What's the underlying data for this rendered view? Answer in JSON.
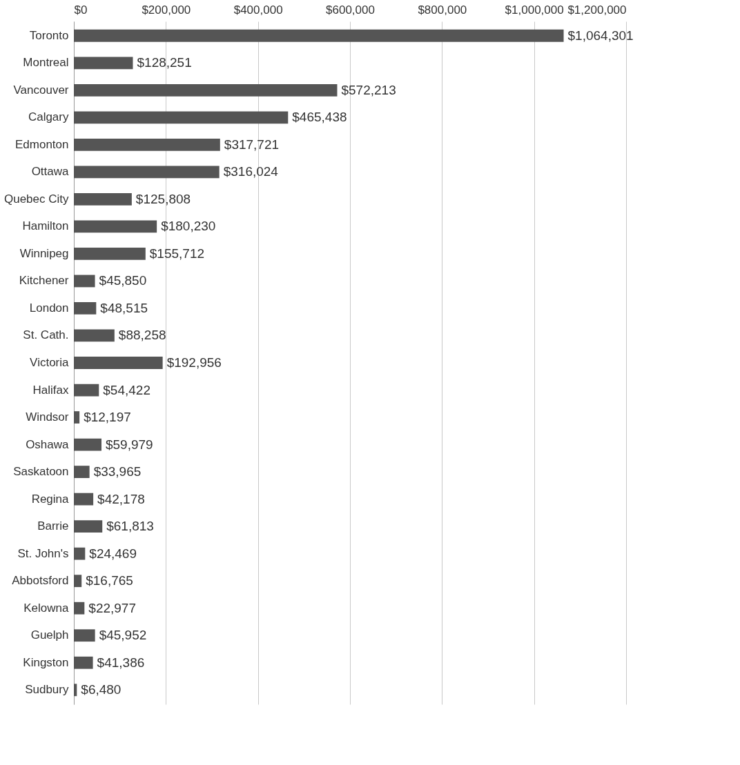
{
  "chart_data": {
    "type": "bar",
    "orientation": "horizontal",
    "grid": "x",
    "categories": [
      "Toronto",
      "Montreal",
      "Vancouver",
      "Calgary",
      "Edmonton",
      "Ottawa",
      "Quebec City",
      "Hamilton",
      "Winnipeg",
      "Kitchener",
      "London",
      "St. Cath.",
      "Victoria",
      "Halifax",
      "Windsor",
      "Oshawa",
      "Saskatoon",
      "Regina",
      "Barrie",
      "St. John's",
      "Abbotsford",
      "Kelowna",
      "Guelph",
      "Kingston",
      "Sudbury"
    ],
    "values": [
      1064301,
      128251,
      572213,
      465438,
      317721,
      316024,
      125808,
      180230,
      155712,
      45850,
      48515,
      88258,
      192956,
      54422,
      12197,
      59979,
      33965,
      42178,
      61813,
      24469,
      16765,
      22977,
      45952,
      41386,
      6480
    ],
    "value_labels": [
      "$1,064,301",
      "$128,251",
      "$572,213",
      "$465,438",
      "$317,721",
      "$316,024",
      "$125,808",
      "$180,230",
      "$155,712",
      "$45,850",
      "$48,515",
      "$88,258",
      "$192,956",
      "$54,422",
      "$12,197",
      "$59,979",
      "$33,965",
      "$42,178",
      "$61,813",
      "$24,469",
      "$16,765",
      "$22,977",
      "$45,952",
      "$41,386",
      "$6,480"
    ],
    "color": "#555555",
    "xlim": [
      0,
      1200000
    ],
    "xticks": [
      {
        "value": 0,
        "label": "$0"
      },
      {
        "value": 200000,
        "label": "$200,000"
      },
      {
        "value": 400000,
        "label": "$400,000"
      },
      {
        "value": 600000,
        "label": "$600,000"
      },
      {
        "value": 800000,
        "label": "$800,000"
      },
      {
        "value": 1000000,
        "label": "$1,000,000"
      },
      {
        "value": 1200000,
        "label": "$1,200,000"
      }
    ]
  }
}
